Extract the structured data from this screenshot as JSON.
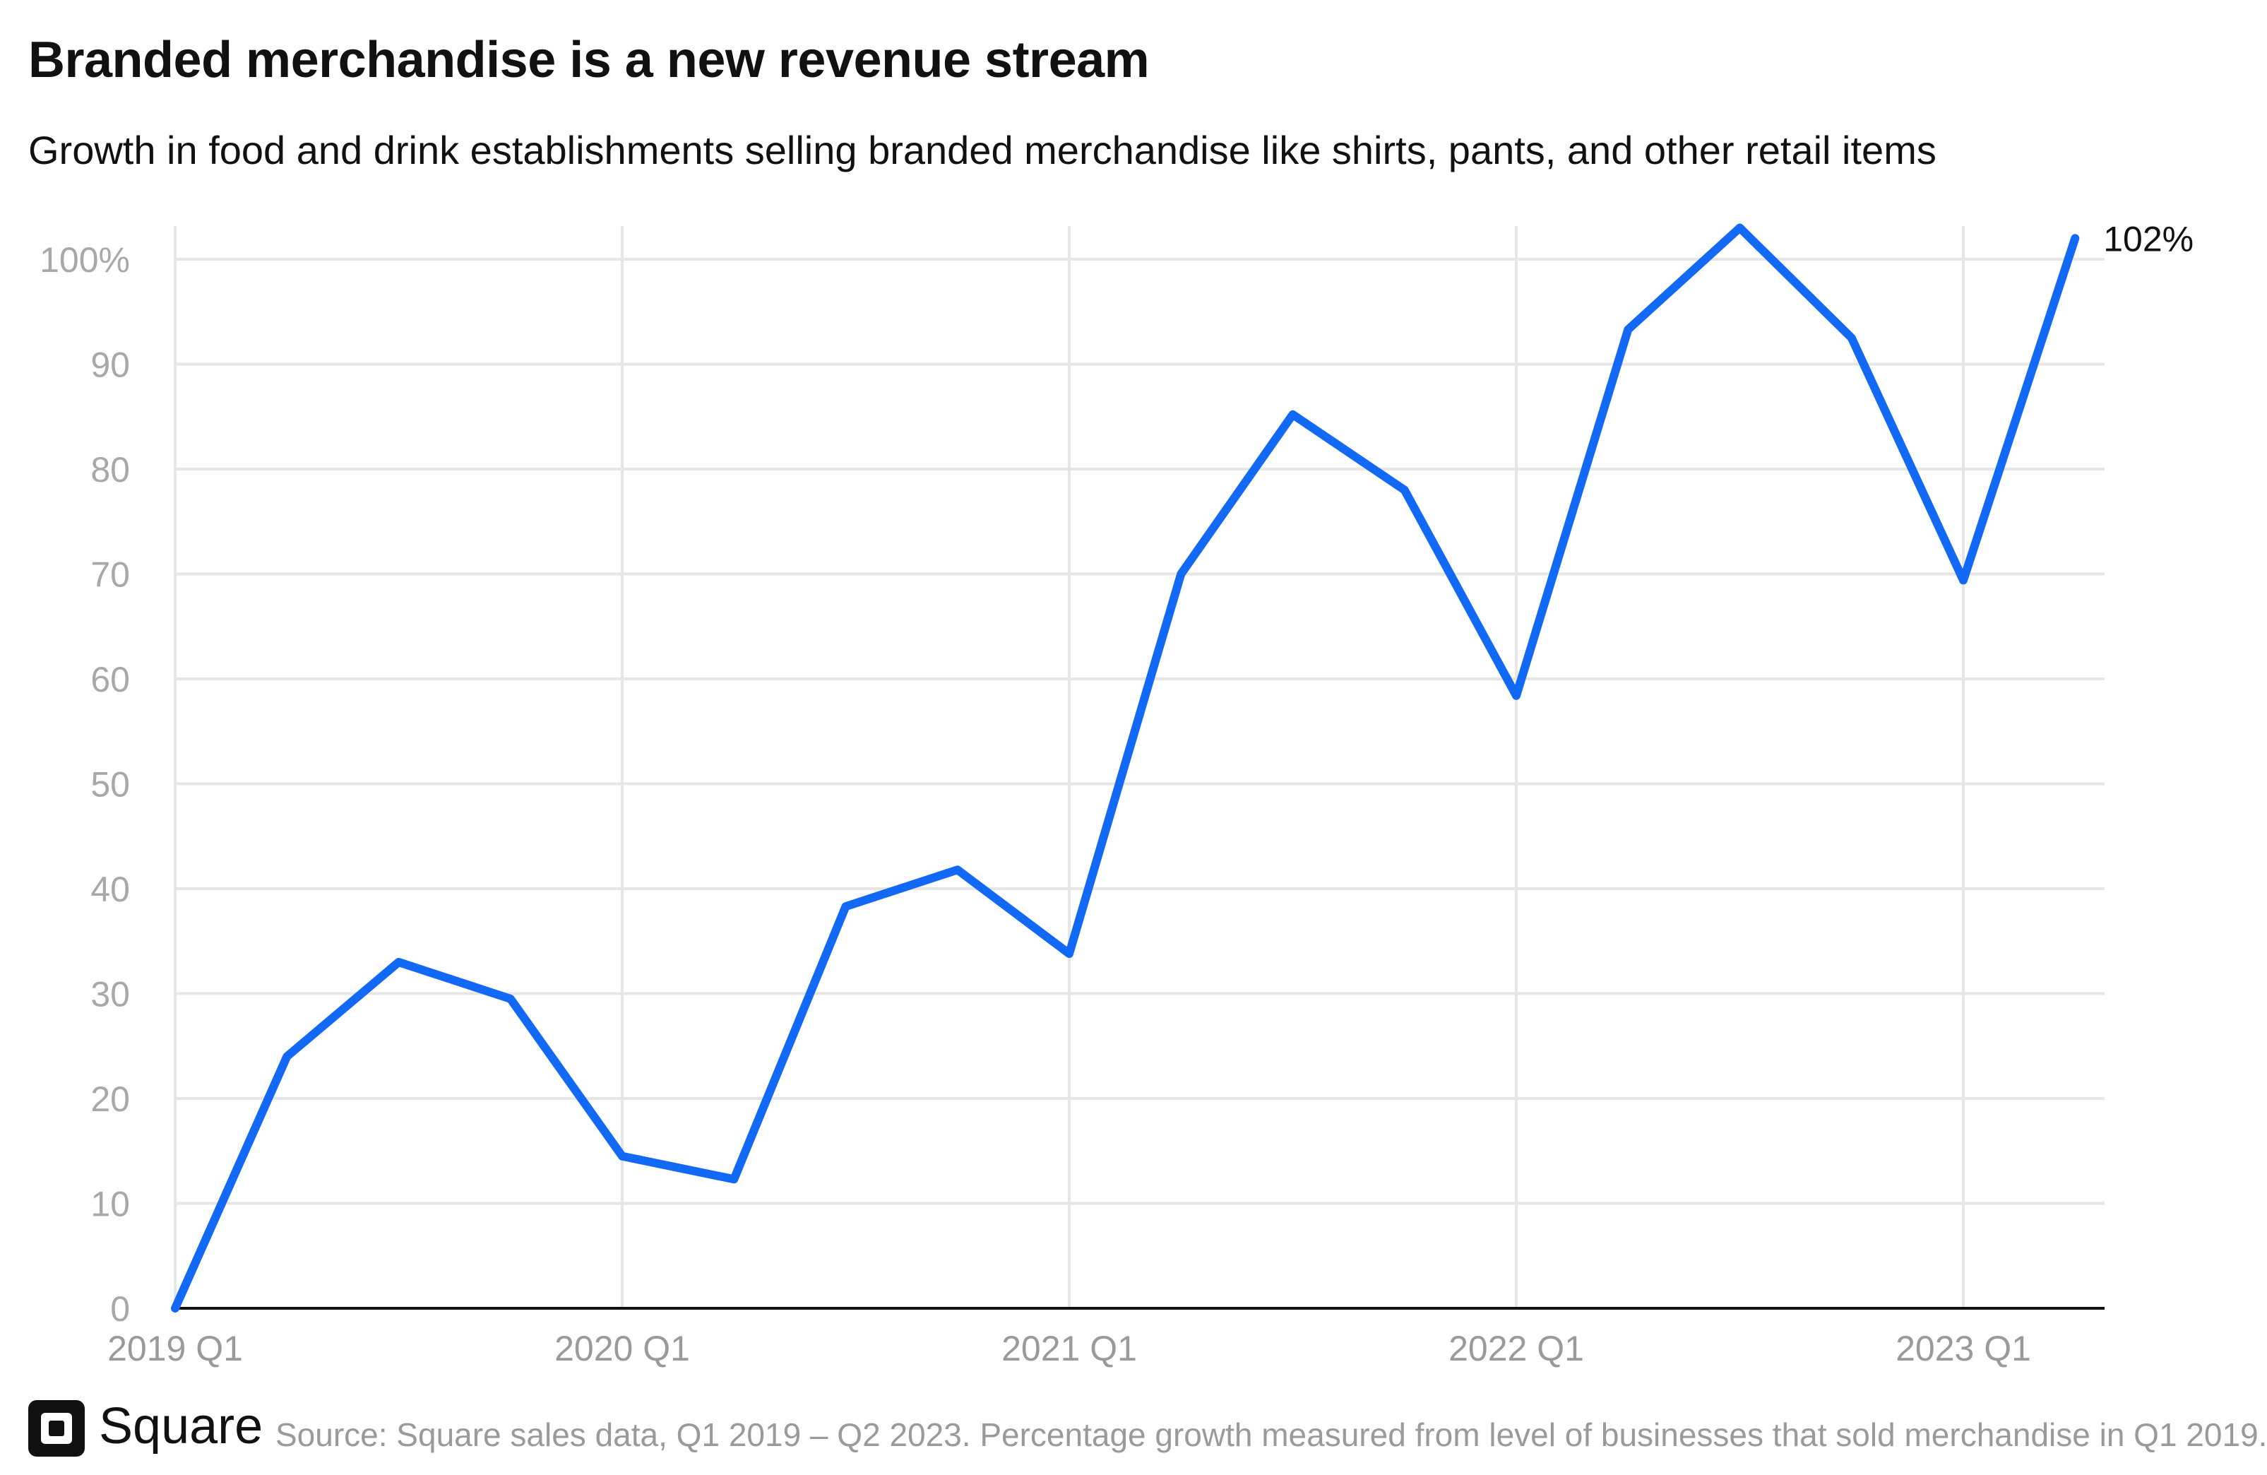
{
  "title": "Branded merchandise is a new revenue stream",
  "subtitle": "Growth in food and drink establishments selling branded merchandise like shirts, pants, and other retail items",
  "footer": {
    "brand": "Square",
    "source": "Source: Square sales data, Q1 2019 – Q2 2023. Percentage growth measured from level of businesses that sold merchandise in Q1 2019."
  },
  "colors": {
    "line": "#1269f5",
    "grid": "#e6e6e6",
    "tick": "#a8a8a8"
  },
  "icons": {
    "logo": "square-logo-icon"
  },
  "chart_data": {
    "type": "line",
    "title": "Branded merchandise is a new revenue stream",
    "subtitle": "Growth in food and drink establishments selling branded merchandise like shirts, pants, and other retail items",
    "xlabel": "",
    "ylabel": "",
    "x": [
      "2019 Q1",
      "2019 Q2",
      "2019 Q3",
      "2019 Q4",
      "2020 Q1",
      "2020 Q2",
      "2020 Q3",
      "2020 Q4",
      "2021 Q1",
      "2021 Q2",
      "2021 Q3",
      "2021 Q4",
      "2022 Q1",
      "2022 Q2",
      "2022 Q3",
      "2022 Q4",
      "2023 Q1",
      "2023 Q2"
    ],
    "x_tick_labels": [
      "2019 Q1",
      "2020 Q1",
      "2021 Q1",
      "2022 Q1",
      "2023 Q1"
    ],
    "x_tick_indices": [
      0,
      4,
      8,
      12,
      16
    ],
    "y_ticks": [
      0,
      10,
      20,
      30,
      40,
      50,
      60,
      70,
      80,
      90,
      100
    ],
    "y_tick_labels": [
      "0",
      "10",
      "20",
      "30",
      "40",
      "50",
      "60",
      "70",
      "80",
      "90",
      "100%"
    ],
    "ylim": [
      0,
      100
    ],
    "grid": true,
    "series": [
      {
        "values": [
          0,
          24,
          33,
          29.5,
          14.5,
          12.3,
          38.3,
          41.8,
          33.8,
          70,
          85.2,
          78,
          58.4,
          93.3,
          103,
          92.5,
          69.4,
          102
        ]
      }
    ],
    "end_label": "102%"
  }
}
